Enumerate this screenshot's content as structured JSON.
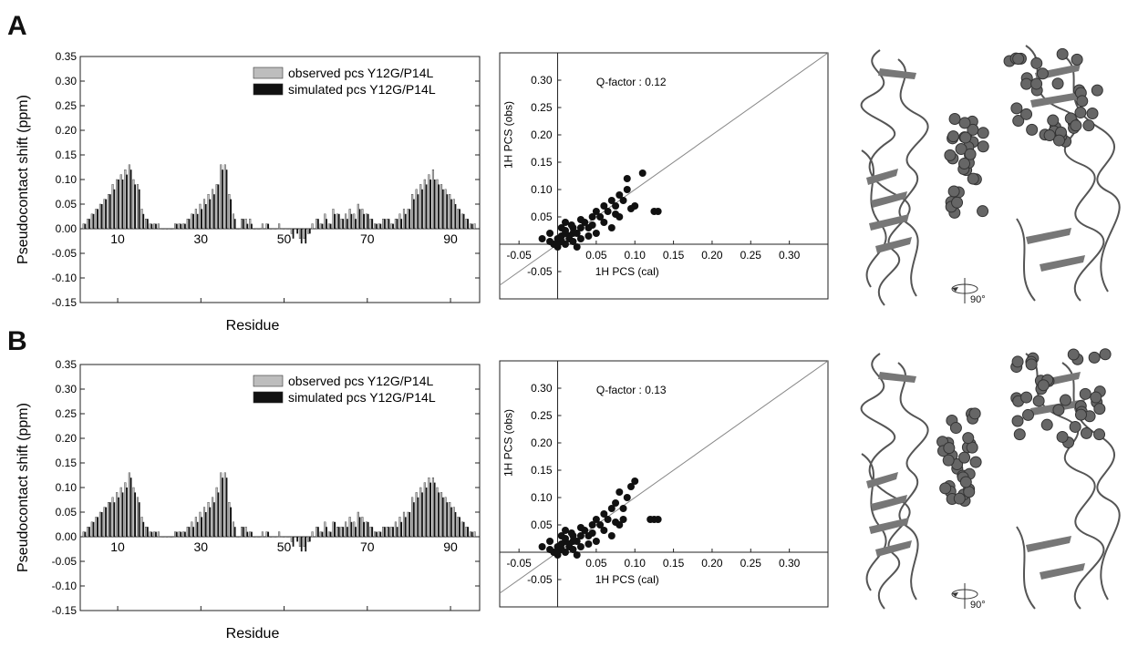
{
  "panels": [
    {
      "letter": "A"
    },
    {
      "letter": "B"
    }
  ],
  "chart_data": [
    {
      "type": "bar",
      "panel": "A",
      "xlabel": "Residue",
      "ylabel": "Pseudocontact shift (ppm)",
      "ylim": [
        -0.15,
        0.35
      ],
      "xlim": [
        1,
        97
      ],
      "xticks": [
        "10",
        "30",
        "50",
        "70",
        "90"
      ],
      "yticks": [
        "0.35",
        "0.30",
        "0.25",
        "0.20",
        "0.15",
        "0.10",
        "0.05",
        "0.00",
        "-0.05",
        "-0.10",
        "-0.15"
      ],
      "legend_position": "top-right",
      "series": [
        {
          "name": "observed pcs Y12G/P14L",
          "color": "#bdbdbd"
        },
        {
          "name": "simulated pcs Y12G/P14L",
          "color": "#111111"
        }
      ],
      "residues": [
        2,
        3,
        4,
        5,
        6,
        7,
        8,
        9,
        10,
        11,
        12,
        13,
        14,
        15,
        16,
        17,
        18,
        19,
        20,
        21,
        22,
        23,
        24,
        25,
        26,
        27,
        28,
        29,
        30,
        31,
        32,
        33,
        34,
        35,
        36,
        37,
        38,
        39,
        40,
        41,
        42,
        43,
        44,
        45,
        46,
        47,
        48,
        49,
        50,
        51,
        52,
        53,
        54,
        55,
        56,
        57,
        58,
        59,
        60,
        61,
        62,
        63,
        64,
        65,
        66,
        67,
        68,
        69,
        70,
        71,
        72,
        73,
        74,
        75,
        76,
        77,
        78,
        79,
        80,
        81,
        82,
        83,
        84,
        85,
        86,
        87,
        88,
        89,
        90,
        91,
        92,
        93,
        94,
        95,
        96
      ],
      "observed": [
        0.01,
        0.02,
        0.03,
        0.04,
        0.05,
        0.06,
        0.07,
        0.09,
        0.1,
        0.11,
        0.12,
        0.13,
        0.1,
        0.09,
        0.04,
        0.02,
        0.01,
        0.01,
        0.01,
        0.0,
        0.0,
        0.0,
        0.01,
        0.01,
        0.01,
        0.02,
        0.03,
        0.04,
        0.05,
        0.06,
        0.07,
        0.08,
        0.09,
        0.13,
        0.13,
        0.07,
        0.03,
        0.0,
        0.02,
        0.02,
        0.02,
        0.0,
        0.0,
        0.01,
        0.01,
        0.0,
        0.0,
        0.01,
        0.0,
        0.0,
        -0.01,
        0.0,
        -0.02,
        -0.02,
        -0.01,
        0.01,
        0.02,
        0.01,
        0.03,
        0.01,
        0.04,
        0.03,
        0.02,
        0.03,
        0.04,
        0.03,
        0.05,
        0.04,
        0.03,
        0.02,
        0.01,
        0.01,
        0.02,
        0.02,
        0.01,
        0.02,
        0.03,
        0.04,
        0.04,
        0.07,
        0.08,
        0.09,
        0.1,
        0.11,
        0.12,
        0.1,
        0.09,
        0.08,
        0.07,
        0.06,
        0.04,
        0.03,
        0.02,
        0.01,
        0.01
      ],
      "simulated": [
        0.01,
        0.02,
        0.03,
        0.04,
        0.05,
        0.06,
        0.07,
        0.08,
        0.1,
        0.1,
        0.11,
        0.12,
        0.09,
        0.08,
        0.03,
        0.02,
        0.01,
        0.01,
        0.0,
        0.0,
        0.0,
        0.0,
        0.01,
        0.01,
        0.01,
        0.02,
        0.03,
        0.03,
        0.04,
        0.05,
        0.06,
        0.07,
        0.09,
        0.12,
        0.12,
        0.06,
        0.02,
        0.0,
        0.02,
        0.01,
        0.01,
        0.0,
        0.0,
        0.0,
        0.01,
        0.0,
        0.0,
        0.0,
        0.0,
        0.0,
        -0.02,
        -0.01,
        -0.03,
        -0.03,
        -0.01,
        0.0,
        0.02,
        0.01,
        0.02,
        0.01,
        0.03,
        0.03,
        0.02,
        0.02,
        0.03,
        0.02,
        0.04,
        0.03,
        0.03,
        0.02,
        0.01,
        0.01,
        0.02,
        0.02,
        0.01,
        0.02,
        0.02,
        0.03,
        0.04,
        0.06,
        0.07,
        0.08,
        0.09,
        0.1,
        0.1,
        0.09,
        0.08,
        0.07,
        0.06,
        0.05,
        0.04,
        0.03,
        0.02,
        0.01,
        0.0
      ]
    },
    {
      "type": "scatter",
      "panel": "A",
      "xlabel": "1H PCS (cal)",
      "ylabel": "1H PCS (obs)",
      "annotation": "Q-factor : 0.12",
      "xlim": [
        -0.075,
        0.35
      ],
      "ylim": [
        -0.1,
        0.35
      ],
      "xticks": [
        "-0.05",
        "0.05",
        "0.10",
        "0.15",
        "0.20",
        "0.25",
        "0.30"
      ],
      "yticks": [
        "0.30",
        "0.25",
        "0.20",
        "0.15",
        "0.10",
        "0.05",
        "-0.05"
      ],
      "points": [
        [
          -0.02,
          0.01
        ],
        [
          -0.01,
          0.02
        ],
        [
          0.0,
          0.01
        ],
        [
          0.01,
          0.0
        ],
        [
          0.005,
          0.015
        ],
        [
          0.01,
          0.02
        ],
        [
          0.015,
          0.01
        ],
        [
          0.02,
          0.03
        ],
        [
          0.02,
          0.005
        ],
        [
          0.0,
          -0.005
        ],
        [
          -0.005,
          0.0
        ],
        [
          0.01,
          0.04
        ],
        [
          0.025,
          0.02
        ],
        [
          0.03,
          0.01
        ],
        [
          0.035,
          0.04
        ],
        [
          0.04,
          0.03
        ],
        [
          0.045,
          0.05
        ],
        [
          0.05,
          0.06
        ],
        [
          0.055,
          0.05
        ],
        [
          0.06,
          0.07
        ],
        [
          0.065,
          0.06
        ],
        [
          0.07,
          0.08
        ],
        [
          0.075,
          0.07
        ],
        [
          0.08,
          0.09
        ],
        [
          0.085,
          0.08
        ],
        [
          0.09,
          0.1
        ],
        [
          0.09,
          0.12
        ],
        [
          0.11,
          0.13
        ],
        [
          0.1,
          0.07
        ],
        [
          0.08,
          0.05
        ],
        [
          0.07,
          0.03
        ],
        [
          0.05,
          0.02
        ],
        [
          0.045,
          0.035
        ],
        [
          0.03,
          0.03
        ],
        [
          0.02,
          0.02
        ],
        [
          0.015,
          0.015
        ],
        [
          0.005,
          0.005
        ],
        [
          0.0,
          0.0
        ],
        [
          0.01,
          0.025
        ],
        [
          0.03,
          0.045
        ],
        [
          0.06,
          0.04
        ],
        [
          0.075,
          0.055
        ],
        [
          0.13,
          0.06
        ],
        [
          0.125,
          0.06
        ],
        [
          0.095,
          0.065
        ],
        [
          0.04,
          0.015
        ],
        [
          0.025,
          -0.005
        ],
        [
          -0.01,
          0.005
        ],
        [
          0.005,
          0.03
        ],
        [
          0.018,
          0.035
        ]
      ]
    },
    {
      "type": "bar",
      "panel": "B",
      "xlabel": "Residue",
      "ylabel": "Pseudocontact shift (ppm)",
      "ylim": [
        -0.15,
        0.35
      ],
      "xlim": [
        1,
        97
      ],
      "xticks": [
        "10",
        "30",
        "50",
        "70",
        "90"
      ],
      "yticks": [
        "0.35",
        "0.30",
        "0.25",
        "0.20",
        "0.15",
        "0.10",
        "0.05",
        "0.00",
        "-0.05",
        "-0.10",
        "-0.15"
      ],
      "legend_position": "top-right",
      "series": [
        {
          "name": "observed pcs Y12G/P14L",
          "color": "#bdbdbd"
        },
        {
          "name": "simulated pcs Y12G/P14L",
          "color": "#111111"
        }
      ],
      "residues": [
        2,
        3,
        4,
        5,
        6,
        7,
        8,
        9,
        10,
        11,
        12,
        13,
        14,
        15,
        16,
        17,
        18,
        19,
        20,
        21,
        22,
        23,
        24,
        25,
        26,
        27,
        28,
        29,
        30,
        31,
        32,
        33,
        34,
        35,
        36,
        37,
        38,
        39,
        40,
        41,
        42,
        43,
        44,
        45,
        46,
        47,
        48,
        49,
        50,
        51,
        52,
        53,
        54,
        55,
        56,
        57,
        58,
        59,
        60,
        61,
        62,
        63,
        64,
        65,
        66,
        67,
        68,
        69,
        70,
        71,
        72,
        73,
        74,
        75,
        76,
        77,
        78,
        79,
        80,
        81,
        82,
        83,
        84,
        85,
        86,
        87,
        88,
        89,
        90,
        91,
        92,
        93,
        94,
        95,
        96
      ],
      "observed": [
        0.01,
        0.02,
        0.03,
        0.04,
        0.05,
        0.06,
        0.07,
        0.08,
        0.09,
        0.1,
        0.11,
        0.13,
        0.1,
        0.08,
        0.04,
        0.02,
        0.01,
        0.01,
        0.01,
        0.0,
        0.0,
        0.0,
        0.01,
        0.01,
        0.01,
        0.02,
        0.03,
        0.04,
        0.05,
        0.06,
        0.07,
        0.08,
        0.1,
        0.13,
        0.13,
        0.07,
        0.03,
        0.0,
        0.02,
        0.02,
        0.01,
        0.0,
        0.0,
        0.01,
        0.01,
        0.0,
        0.0,
        0.01,
        0.0,
        0.0,
        -0.01,
        0.0,
        -0.02,
        -0.02,
        -0.01,
        0.01,
        0.02,
        0.01,
        0.03,
        0.01,
        0.03,
        0.02,
        0.02,
        0.03,
        0.04,
        0.03,
        0.05,
        0.04,
        0.03,
        0.02,
        0.01,
        0.01,
        0.02,
        0.02,
        0.02,
        0.03,
        0.04,
        0.05,
        0.05,
        0.08,
        0.09,
        0.1,
        0.11,
        0.12,
        0.12,
        0.1,
        0.09,
        0.08,
        0.07,
        0.06,
        0.04,
        0.03,
        0.02,
        0.01,
        0.01
      ],
      "simulated": [
        0.01,
        0.02,
        0.03,
        0.04,
        0.05,
        0.06,
        0.07,
        0.07,
        0.08,
        0.09,
        0.1,
        0.12,
        0.09,
        0.07,
        0.03,
        0.02,
        0.01,
        0.01,
        0.0,
        0.0,
        0.0,
        0.0,
        0.01,
        0.01,
        0.01,
        0.02,
        0.02,
        0.03,
        0.04,
        0.05,
        0.06,
        0.07,
        0.09,
        0.12,
        0.12,
        0.06,
        0.02,
        0.0,
        0.02,
        0.01,
        0.01,
        0.0,
        0.0,
        0.0,
        0.01,
        0.0,
        0.0,
        0.0,
        0.0,
        0.0,
        -0.02,
        -0.01,
        -0.03,
        -0.03,
        -0.01,
        0.0,
        0.02,
        0.01,
        0.02,
        0.01,
        0.03,
        0.02,
        0.02,
        0.02,
        0.03,
        0.02,
        0.04,
        0.03,
        0.03,
        0.02,
        0.01,
        0.01,
        0.02,
        0.02,
        0.02,
        0.02,
        0.03,
        0.04,
        0.05,
        0.07,
        0.08,
        0.09,
        0.1,
        0.11,
        0.11,
        0.09,
        0.08,
        0.07,
        0.06,
        0.05,
        0.04,
        0.03,
        0.02,
        0.01,
        0.0
      ]
    },
    {
      "type": "scatter",
      "panel": "B",
      "xlabel": "1H PCS (cal)",
      "ylabel": "1H PCS (obs)",
      "annotation": "Q-factor : 0.13",
      "xlim": [
        -0.075,
        0.35
      ],
      "ylim": [
        -0.1,
        0.35
      ],
      "xticks": [
        "-0.05",
        "0.05",
        "0.10",
        "0.15",
        "0.20",
        "0.25",
        "0.30"
      ],
      "yticks": [
        "0.30",
        "0.25",
        "0.20",
        "0.15",
        "0.10",
        "0.05",
        "-0.05"
      ],
      "points": [
        [
          -0.02,
          0.01
        ],
        [
          -0.01,
          0.02
        ],
        [
          0.0,
          0.01
        ],
        [
          0.01,
          0.0
        ],
        [
          0.005,
          0.015
        ],
        [
          0.01,
          0.02
        ],
        [
          0.015,
          0.01
        ],
        [
          0.02,
          0.03
        ],
        [
          0.02,
          0.005
        ],
        [
          0.0,
          -0.005
        ],
        [
          -0.005,
          0.0
        ],
        [
          0.01,
          0.04
        ],
        [
          0.025,
          0.02
        ],
        [
          0.03,
          0.01
        ],
        [
          0.035,
          0.04
        ],
        [
          0.04,
          0.03
        ],
        [
          0.045,
          0.05
        ],
        [
          0.05,
          0.06
        ],
        [
          0.055,
          0.05
        ],
        [
          0.06,
          0.07
        ],
        [
          0.065,
          0.06
        ],
        [
          0.07,
          0.08
        ],
        [
          0.075,
          0.09
        ],
        [
          0.08,
          0.11
        ],
        [
          0.085,
          0.08
        ],
        [
          0.09,
          0.1
        ],
        [
          0.095,
          0.12
        ],
        [
          0.1,
          0.13
        ],
        [
          0.085,
          0.06
        ],
        [
          0.08,
          0.05
        ],
        [
          0.07,
          0.03
        ],
        [
          0.05,
          0.02
        ],
        [
          0.045,
          0.035
        ],
        [
          0.03,
          0.03
        ],
        [
          0.02,
          0.02
        ],
        [
          0.015,
          0.015
        ],
        [
          0.005,
          0.005
        ],
        [
          0.0,
          0.0
        ],
        [
          0.01,
          0.025
        ],
        [
          0.03,
          0.045
        ],
        [
          0.06,
          0.04
        ],
        [
          0.075,
          0.055
        ],
        [
          0.13,
          0.06
        ],
        [
          0.125,
          0.06
        ],
        [
          0.12,
          0.06
        ],
        [
          0.04,
          0.015
        ],
        [
          0.025,
          -0.005
        ],
        [
          -0.01,
          0.005
        ],
        [
          0.005,
          0.03
        ],
        [
          0.018,
          0.035
        ]
      ]
    }
  ],
  "icons": {
    "rotation": "rotate-90-icon",
    "rotation_label": "90°"
  }
}
